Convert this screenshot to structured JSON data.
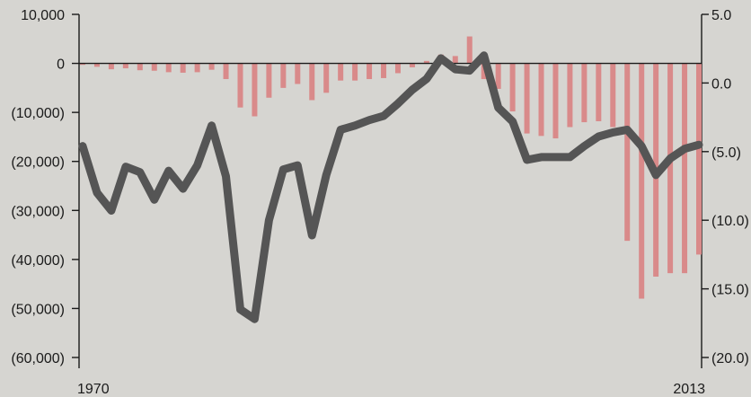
{
  "chart_data": {
    "type": "bar+line",
    "x_start": 1970,
    "x_end": 2013,
    "x_tick_labels": [
      "1970",
      "2013"
    ],
    "left_axis": {
      "ticks": [
        10000,
        0,
        -10000,
        -20000,
        -30000,
        -40000,
        -50000,
        -60000
      ],
      "tick_labels": [
        "10,000",
        "0",
        "(10,000)",
        "(20,000)",
        "(30,000)",
        "(40,000)",
        "(50,000)",
        "(60,000)"
      ],
      "ylim": [
        -60000,
        10000
      ]
    },
    "right_axis": {
      "ticks": [
        5,
        0,
        -5,
        -10,
        -15,
        -20
      ],
      "tick_labels": [
        "5.0",
        "0.0",
        "(5.0)",
        "(10.0)",
        "(15.0)",
        "(20.0)"
      ],
      "ylim": [
        -20,
        5
      ]
    },
    "series": [
      {
        "type": "bar",
        "axis": "left",
        "values": [
          -300,
          -700,
          -1200,
          -1000,
          -1400,
          -1500,
          -1800,
          -1900,
          -1800,
          -1300,
          -3200,
          -9000,
          -10800,
          -7000,
          -5000,
          -4200,
          -7500,
          -6000,
          -3500,
          -3500,
          -3200,
          -3000,
          -2000,
          -800,
          500,
          1800,
          1500,
          5500,
          -3200,
          -5200,
          -9800,
          -14300,
          -14800,
          -15300,
          -13000,
          -12000,
          -11800,
          -13000,
          -36200,
          -48000,
          -43500,
          -42800,
          -42800,
          -39000
        ]
      },
      {
        "type": "line",
        "axis": "right",
        "values": [
          -4.6,
          -8.0,
          -9.3,
          -6.1,
          -6.5,
          -8.5,
          -6.4,
          -7.7,
          -6.0,
          -3.1,
          -6.8,
          -16.5,
          -17.2,
          -10.0,
          -6.3,
          -6.0,
          -11.1,
          -6.7,
          -3.4,
          -3.1,
          -2.7,
          -2.4,
          -1.5,
          -0.5,
          0.3,
          1.8,
          1.0,
          0.9,
          2.0,
          -1.8,
          -2.8,
          -5.6,
          -5.4,
          -5.4,
          -5.4,
          -4.6,
          -3.9,
          -3.6,
          -3.4,
          -4.6,
          -6.7,
          -5.5,
          -4.8,
          -4.5
        ]
      }
    ]
  },
  "colors": {
    "background": "#d6d5d1",
    "bar": "#d98a8a",
    "line": "#555555",
    "axis": "#1a1a1a"
  }
}
